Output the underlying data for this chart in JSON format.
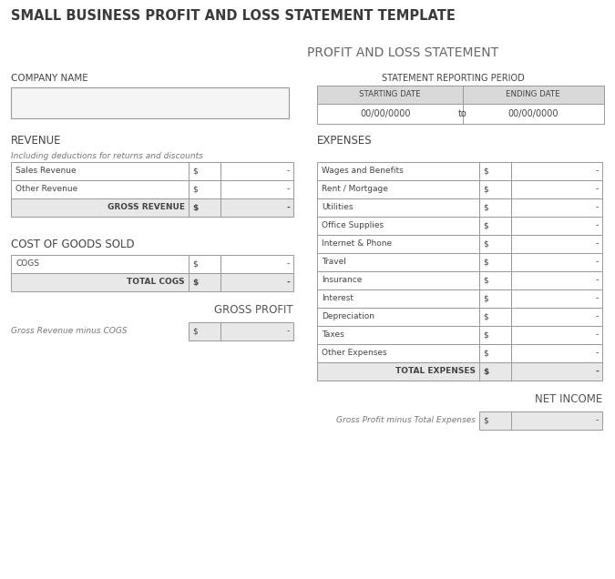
{
  "title": "SMALL BUSINESS PROFIT AND LOSS STATEMENT TEMPLATE",
  "subtitle": "PROFIT AND LOSS STATEMENT",
  "bg_color": "#ffffff",
  "header_bg": "#d9d9d9",
  "row_bg_light": "#e8e8e8",
  "row_bg_white": "#ffffff",
  "border_color": "#999999",
  "text_dark": "#444444",
  "text_gray": "#666666",
  "company_label": "COMPANY NAME",
  "period_label": "STATEMENT REPORTING PERIOD",
  "starting_date_label": "STARTING DATE",
  "ending_date_label": "ENDING DATE",
  "starting_date_val": "00/00/0000",
  "to_label": "to",
  "ending_date_val": "00/00/0000",
  "revenue_label": "REVENUE",
  "revenue_subtitle": "Including deductions for returns and discounts",
  "revenue_rows": [
    "Sales Revenue",
    "Other Revenue"
  ],
  "gross_revenue_label": "GROSS REVENUE",
  "cogs_label": "COST OF GOODS SOLD",
  "cogs_rows": [
    "COGS"
  ],
  "total_cogs_label": "TOTAL COGS",
  "gross_profit_label": "GROSS PROFIT",
  "gross_profit_sub": "Gross Revenue minus COGS",
  "expenses_label": "EXPENSES",
  "expense_rows": [
    "Wages and Benefits",
    "Rent / Mortgage",
    "Utilities",
    "Office Supplies",
    "Internet & Phone",
    "Travel",
    "Insurance",
    "Interest",
    "Depreciation",
    "Taxes",
    "Other Expenses"
  ],
  "total_expenses_label": "TOTAL EXPENSES",
  "net_income_label": "NET INCOME",
  "net_income_sub": "Gross Profit minus Total Expenses",
  "dollar_sign": "$",
  "dash": "-"
}
